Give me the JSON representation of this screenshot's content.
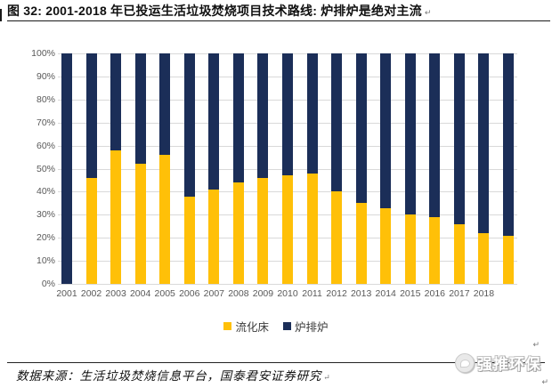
{
  "figure": {
    "title": "图 32: 2001-2018 年已投运生活垃圾焚烧项目技术路线: 炉排炉是绝对主流",
    "source": "数据来源：生活垃圾焚烧信息平台，国泰君安证券研究",
    "watermark": "强推环保",
    "return_mark": "↵"
  },
  "chart_data": {
    "type": "bar",
    "stacked": true,
    "unit": "percent_share",
    "title": "",
    "xlabel": "",
    "ylabel": "",
    "ylim": [
      0,
      100
    ],
    "grid": true,
    "legend_position": "bottom",
    "ytick_labels": [
      "0%",
      "10%",
      "20%",
      "30%",
      "40%",
      "50%",
      "60%",
      "70%",
      "80%",
      "90%",
      "100%"
    ],
    "categories": [
      "2001",
      "2002",
      "2003",
      "2004",
      "2005",
      "2006",
      "2007",
      "2008",
      "2009",
      "2010",
      "2011",
      "2012",
      "2013",
      "2014",
      "2015",
      "2016",
      "2017",
      "2018",
      ""
    ],
    "series": [
      {
        "name": "流化床",
        "color": "#FFC008",
        "values": [
          0,
          46,
          58,
          52,
          56,
          38,
          41,
          44,
          46,
          47,
          48,
          40,
          35,
          33,
          30,
          29,
          26,
          22,
          21
        ]
      },
      {
        "name": "炉排炉",
        "color": "#1B2E58",
        "values": [
          100,
          54,
          42,
          48,
          44,
          62,
          59,
          56,
          54,
          53,
          52,
          60,
          65,
          67,
          70,
          71,
          74,
          78,
          79
        ]
      }
    ],
    "colors": {
      "gridline": "#d9d9d9",
      "tick_text": "#595959"
    }
  }
}
